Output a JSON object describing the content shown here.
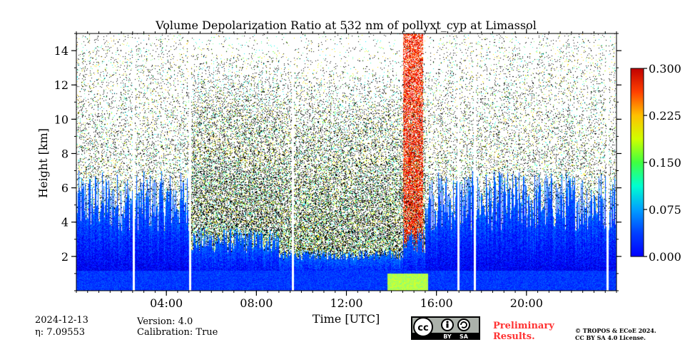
{
  "chart_data": {
    "type": "heatmap",
    "title": "Volume Depolarization Ratio at 532 nm of pollyxt_cyp at Limassol",
    "xlabel": "Time [UTC]",
    "ylabel": "Height [km]",
    "x_ticks": [
      "04:00",
      "08:00",
      "12:00",
      "16:00",
      "20:00"
    ],
    "x_tick_hours": [
      4,
      8,
      12,
      16,
      20
    ],
    "xlim_hours": [
      0,
      24
    ],
    "y_ticks": [
      2,
      4,
      6,
      8,
      10,
      12,
      14
    ],
    "ylim_km": [
      0,
      15
    ],
    "colorbar": {
      "ticks": [
        "0.000",
        "0.075",
        "0.150",
        "0.225",
        "0.300"
      ],
      "range": [
        0,
        0.3
      ],
      "colormap": "jet"
    },
    "data_gaps_hours": [
      2.55,
      5.05,
      9.6,
      16.95,
      17.7,
      23.6
    ],
    "meta": {
      "date": "2024-12-13",
      "eta": "η: 7.09553",
      "version": "Version: 4.0",
      "calibration": "Calibration: True"
    },
    "license": {
      "preliminary_line1": "Preliminary",
      "preliminary_line2": "Results.",
      "copyright_line1": "© TROPOS & ECoE 2024.",
      "copyright_line2": "CC BY SA 4.0 License.",
      "badge_cc": "cc",
      "badge_by": "BY",
      "badge_sa": "SA"
    }
  }
}
